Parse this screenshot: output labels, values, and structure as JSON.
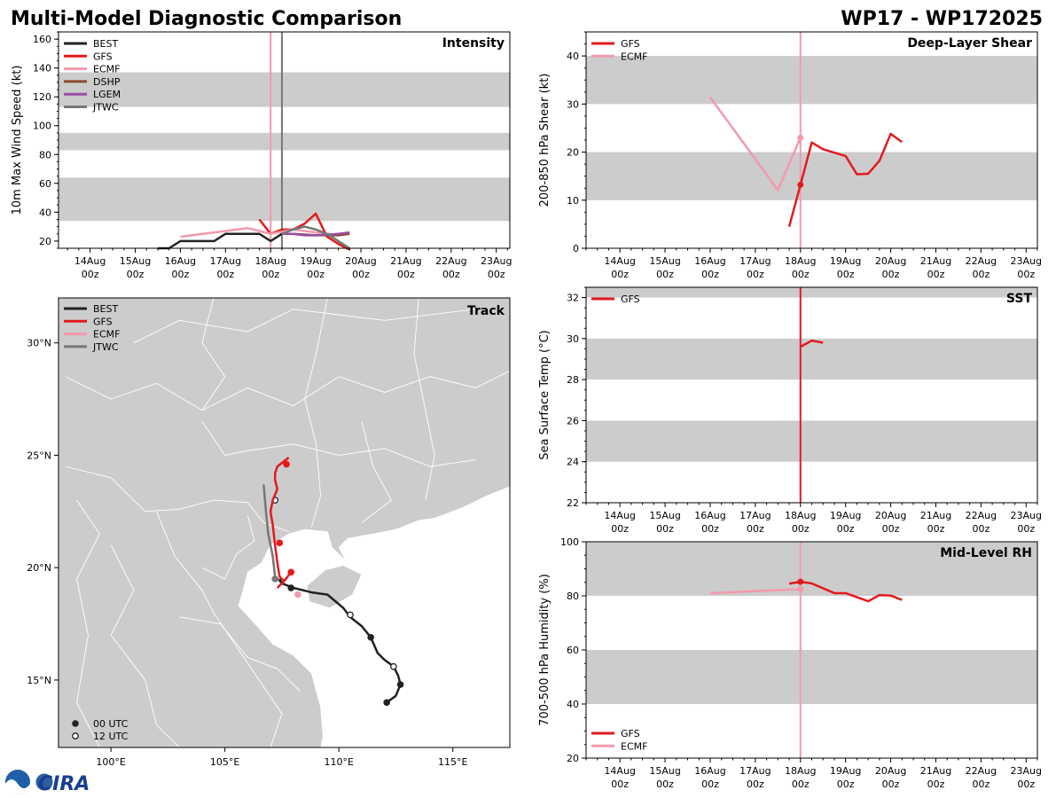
{
  "header": {
    "title_left": "Multi-Model Diagnostic Comparison",
    "title_right": "WP17 - WP172025"
  },
  "logo": {
    "text": "CIRA"
  },
  "colors": {
    "BEST": "#222222",
    "GFS": "#e31a1c",
    "ECMF": "#f29aac",
    "DSHP": "#8c4a2f",
    "LGEM": "#984ea3",
    "JTWC": "#777777",
    "band": "#cccccc",
    "land": "#cccccc"
  },
  "time_axis": {
    "labels": [
      [
        "14Aug",
        "00z"
      ],
      [
        "15Aug",
        "00z"
      ],
      [
        "16Aug",
        "00z"
      ],
      [
        "17Aug",
        "00z"
      ],
      [
        "18Aug",
        "00z"
      ],
      [
        "19Aug",
        "00z"
      ],
      [
        "20Aug",
        "00z"
      ],
      [
        "21Aug",
        "00z"
      ],
      [
        "22Aug",
        "00z"
      ],
      [
        "23Aug",
        "00z"
      ]
    ]
  },
  "chart_data": [
    {
      "id": "intensity",
      "type": "line",
      "title": "Intensity",
      "ylabel": "10m Max Wind Speed (kt)",
      "ylim": [
        15,
        165
      ],
      "yticks": [
        20,
        40,
        60,
        80,
        100,
        120,
        140,
        160
      ],
      "xlim": [
        -0.7,
        9.3
      ],
      "bands": [
        [
          34,
          64
        ],
        [
          83,
          95
        ],
        [
          113,
          137
        ]
      ],
      "vlines": [
        {
          "x": 4.0,
          "model": "ECMF"
        },
        {
          "x": 4.25,
          "model": "JTWC"
        }
      ],
      "legend": [
        "BEST",
        "GFS",
        "ECMF",
        "DSHP",
        "LGEM",
        "JTWC"
      ],
      "series": [
        {
          "name": "BEST",
          "x": [
            1.5,
            1.75,
            2.0,
            2.25,
            2.5,
            2.75,
            3.0,
            3.25,
            3.5,
            3.75,
            4.0,
            4.25
          ],
          "y": [
            15,
            15,
            20,
            20,
            20,
            20,
            25,
            25,
            25,
            25,
            20,
            25
          ]
        },
        {
          "name": "GFS",
          "x": [
            3.75,
            4.0,
            4.25,
            4.5,
            4.75,
            5.0,
            5.25,
            5.5,
            5.75
          ],
          "y": [
            35,
            25,
            28,
            28,
            32,
            39,
            23,
            18,
            14
          ]
        },
        {
          "name": "ECMF",
          "x": [
            2.0,
            2.5,
            3.0,
            3.5,
            4.0,
            4.5,
            5.0,
            5.5
          ],
          "y": [
            23,
            25,
            27,
            29,
            25,
            28,
            26,
            24
          ]
        },
        {
          "name": "DSHP",
          "x": [
            4.25,
            4.5,
            5.0,
            5.5,
            5.75
          ],
          "y": [
            25,
            25,
            24,
            24,
            25
          ]
        },
        {
          "name": "LGEM",
          "x": [
            4.25,
            4.5,
            4.75,
            5.0,
            5.5,
            5.75
          ],
          "y": [
            25,
            25,
            24,
            24,
            25,
            26
          ]
        },
        {
          "name": "JTWC",
          "x": [
            4.25,
            4.5,
            4.75,
            5.0,
            5.25,
            5.5,
            5.75
          ],
          "y": [
            25,
            28,
            30,
            28,
            25,
            20,
            15
          ]
        }
      ]
    },
    {
      "id": "shear",
      "type": "line",
      "title": "Deep-Layer Shear",
      "ylabel": "200-850 hPa Shear (kt)",
      "ylim": [
        0,
        45
      ],
      "yticks": [
        0,
        10,
        20,
        30,
        40
      ],
      "xlim": [
        -0.75,
        9.25
      ],
      "bands": [
        [
          10,
          20
        ],
        [
          30,
          40
        ]
      ],
      "vlines": [
        {
          "x": 4.0,
          "model": "ECMF"
        }
      ],
      "legend": [
        "GFS",
        "ECMF"
      ],
      "series": [
        {
          "name": "GFS",
          "x": [
            3.75,
            4.0,
            4.25,
            4.5,
            5.0,
            5.25,
            5.5,
            5.75,
            6.0,
            6.25
          ],
          "y": [
            4.5,
            13.2,
            22,
            20.6,
            19.2,
            15.4,
            15.5,
            18.2,
            23.8,
            22.1
          ],
          "marker_x": 4.0
        },
        {
          "name": "ECMF",
          "x": [
            2.0,
            3.5,
            4.0
          ],
          "y": [
            31.4,
            12.1,
            23.0
          ],
          "marker_x": 4.0
        }
      ]
    },
    {
      "id": "sst",
      "type": "line",
      "title": "SST",
      "ylabel": "Sea Surface Temp (°C)",
      "ylim": [
        22,
        32.5
      ],
      "yticks": [
        22,
        24,
        26,
        28,
        30,
        32
      ],
      "xlim": [
        -0.75,
        9.25
      ],
      "bands": [
        [
          24,
          26
        ],
        [
          28,
          30
        ],
        [
          32,
          32.5
        ]
      ],
      "vlines": [
        {
          "x": 4.0,
          "model": "GFS"
        }
      ],
      "legend": [
        "GFS"
      ],
      "series": [
        {
          "name": "GFS",
          "x": [
            4.0,
            4.25,
            4.5
          ],
          "y": [
            29.6,
            29.9,
            29.8
          ]
        }
      ]
    },
    {
      "id": "rh",
      "type": "line",
      "title": "Mid-Level RH",
      "ylabel": "700-500 hPa Humidity (%)",
      "ylim": [
        20,
        100
      ],
      "yticks": [
        20,
        40,
        60,
        80,
        100
      ],
      "xlim": [
        -0.75,
        9.25
      ],
      "bands": [
        [
          40,
          60
        ],
        [
          80,
          100
        ]
      ],
      "vlines": [
        {
          "x": 4.0,
          "model": "ECMF"
        }
      ],
      "legend": [
        "GFS",
        "ECMF"
      ],
      "series": [
        {
          "name": "GFS",
          "x": [
            3.75,
            4.0,
            4.25,
            4.5,
            4.75,
            5.0,
            5.5,
            5.75,
            6.0,
            6.25
          ],
          "y": [
            84.5,
            85.2,
            84.6,
            82.8,
            81.0,
            81.0,
            78.0,
            80.3,
            80.1,
            78.5
          ],
          "marker_x": 4.0
        },
        {
          "name": "ECMF",
          "x": [
            2.0,
            4.0
          ],
          "y": [
            81.0,
            82.5
          ],
          "marker_x": 4.0
        }
      ]
    },
    {
      "id": "track",
      "type": "map",
      "title": "Track",
      "lon_range": [
        97.7,
        117.5
      ],
      "lat_range": [
        12.0,
        32.0
      ],
      "xticks": [
        {
          "v": 100,
          "label": "100°E"
        },
        {
          "v": 105,
          "label": "105°E"
        },
        {
          "v": 110,
          "label": "110°E"
        },
        {
          "v": 115,
          "label": "115°E"
        }
      ],
      "yticks": [
        {
          "v": 15,
          "label": "15°N"
        },
        {
          "v": 20,
          "label": "20°N"
        },
        {
          "v": 25,
          "label": "25°N"
        },
        {
          "v": 30,
          "label": "30°N"
        }
      ],
      "legend": [
        "BEST",
        "GFS",
        "ECMF",
        "JTWC"
      ],
      "marker_legend": [
        {
          "label": "00 UTC",
          "fill": "filled"
        },
        {
          "label": "12 UTC",
          "fill": "open"
        }
      ],
      "series": [
        {
          "name": "BEST",
          "lon": [
            112.1,
            112.5,
            112.7,
            112.6,
            112.4,
            112.0,
            111.7,
            111.4,
            111.0,
            110.5,
            110.2,
            109.5,
            108.8,
            108.0,
            107.5,
            107.4
          ],
          "lat": [
            14.0,
            14.3,
            14.8,
            15.2,
            15.6,
            15.9,
            16.2,
            16.9,
            17.4,
            17.8,
            18.2,
            18.8,
            18.9,
            19.1,
            19.3,
            19.5
          ],
          "markers": [
            {
              "lon": 112.1,
              "lat": 14.0,
              "t": "00"
            },
            {
              "lon": 112.7,
              "lat": 14.8,
              "t": "00"
            },
            {
              "lon": 112.4,
              "lat": 15.6,
              "t": "12"
            },
            {
              "lon": 111.4,
              "lat": 16.9,
              "t": "00"
            },
            {
              "lon": 110.5,
              "lat": 17.9,
              "t": "12"
            },
            {
              "lon": 107.9,
              "lat": 19.1,
              "t": "00"
            }
          ]
        },
        {
          "name": "GFS",
          "lon": [
            107.3,
            107.6,
            107.9,
            107.6,
            107.4,
            107.3,
            107.2,
            107.1,
            107.0,
            107.1,
            107.3,
            107.2,
            107.2,
            107.3,
            107.8
          ],
          "lat": [
            19.1,
            19.4,
            19.8,
            19.4,
            19.6,
            20.2,
            21.0,
            21.9,
            22.5,
            23.0,
            23.5,
            23.9,
            24.2,
            24.5,
            24.9
          ],
          "markers": [
            {
              "lon": 107.9,
              "lat": 19.8,
              "t": "00"
            },
            {
              "lon": 107.4,
              "lat": 21.1,
              "t": "00"
            },
            {
              "lon": 107.7,
              "lat": 24.6,
              "t": "00"
            }
          ]
        },
        {
          "name": "ECMF",
          "lon": [
            108.2
          ],
          "lat": [
            18.8
          ],
          "markers": [
            {
              "lon": 108.2,
              "lat": 18.8,
              "t": "00"
            }
          ]
        },
        {
          "name": "JTWC",
          "lon": [
            107.5,
            107.2,
            107.1,
            106.9,
            106.8,
            106.7
          ],
          "lat": [
            19.3,
            19.6,
            20.5,
            21.5,
            22.5,
            23.7
          ],
          "markers": [
            {
              "lon": 107.2,
              "lat": 19.5,
              "t": "00"
            },
            {
              "lon": 107.2,
              "lat": 23.0,
              "t": "12"
            }
          ]
        }
      ]
    }
  ]
}
